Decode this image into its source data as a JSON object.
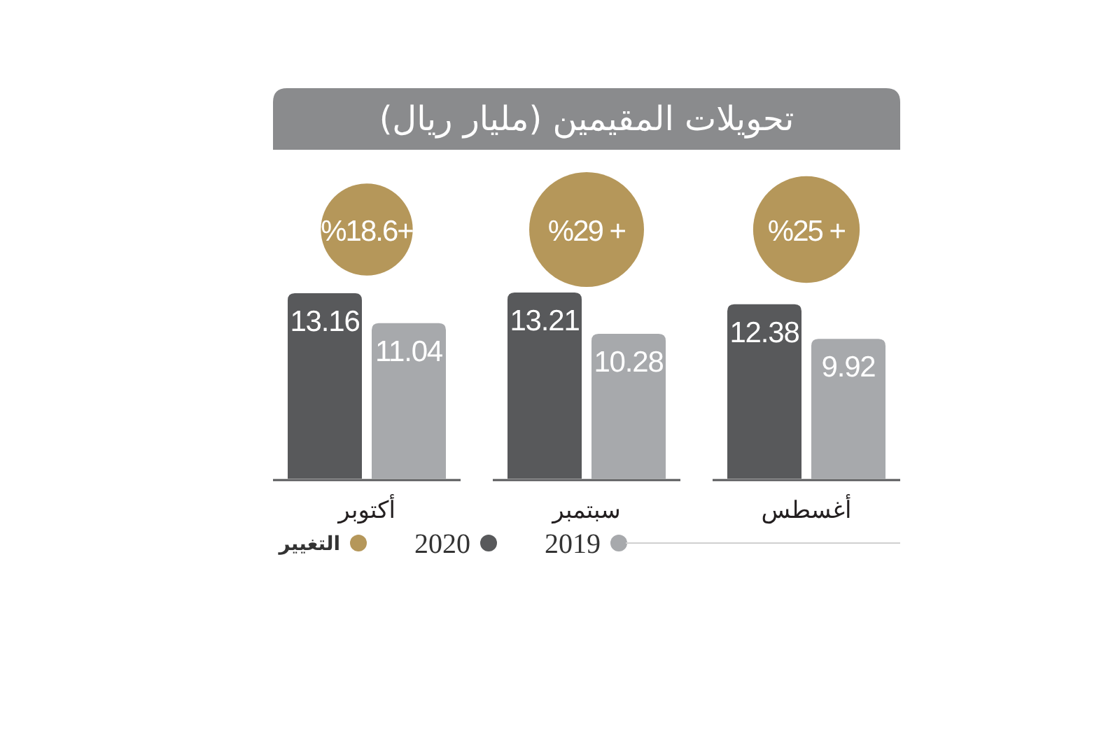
{
  "chart_data": [
    {
      "type": "bar",
      "title": "تحويلات المقيمين (مليار ريال)",
      "categories": [
        "أكتوبر",
        "سبتمبر",
        "أغسطس"
      ],
      "series": [
        {
          "name": "2019",
          "color": "#a7a9ac",
          "values": [
            11.04,
            10.28,
            9.92
          ]
        },
        {
          "name": "2020",
          "color": "#58595b",
          "values": [
            13.16,
            13.21,
            12.38
          ]
        }
      ],
      "data_labels": true,
      "legend": "bottom"
    },
    {
      "type": "other",
      "categories": [
        null,
        null,
        null
      ],
      "series": [
        {
          "name": "التغيير",
          "color": "#b5975a",
          "values": [
            18.6,
            29,
            25
          ],
          "value_labels": [
            "%18.6+",
            "%29 +",
            "%25 +"
          ]
        }
      ],
      "legend": "bottom"
    }
  ]
}
